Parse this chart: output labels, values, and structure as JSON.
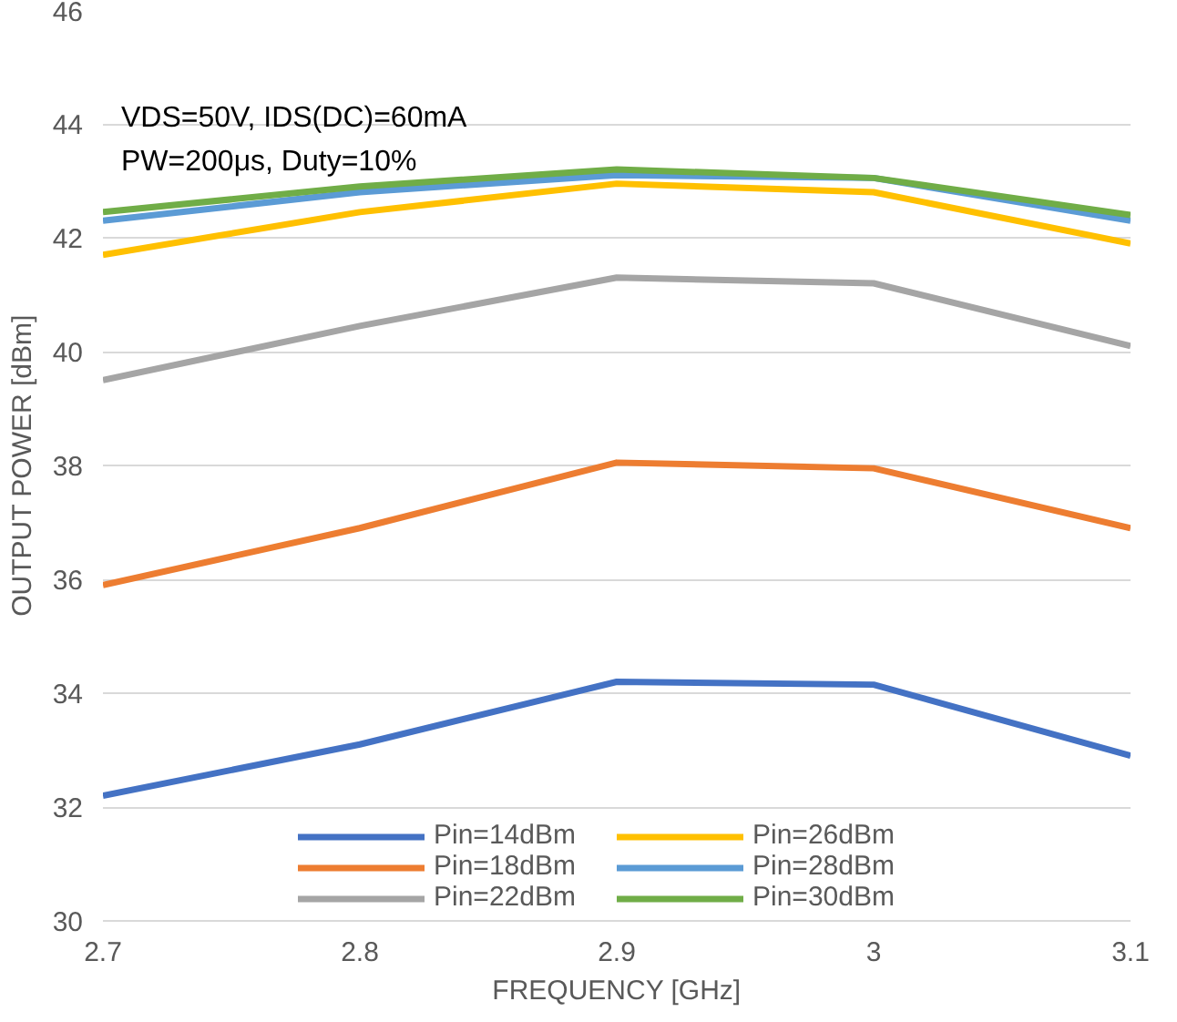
{
  "chart_data": {
    "type": "line",
    "xlabel": "FREQUENCY [GHz]",
    "ylabel": "OUTPUT POWER [dBm]",
    "x": [
      2.7,
      2.8,
      2.9,
      3.0,
      3.1
    ],
    "xlim": [
      2.7,
      3.1
    ],
    "xticks": [
      2.7,
      2.8,
      2.9,
      3,
      3.1
    ],
    "ylim": [
      30,
      46
    ],
    "yticks": [
      30,
      32,
      34,
      36,
      38,
      40,
      42,
      44,
      46
    ],
    "grid": "y",
    "legend": "bottom",
    "marker": "none",
    "line_style": "solid",
    "annotations": [
      "VDS=50V, IDS(DC)=60mA",
      "PW=200μs, Duty=10%"
    ],
    "series": [
      {
        "name": "Pin=14dBm",
        "color": "#4472c4",
        "values": [
          32.2,
          33.1,
          34.2,
          34.15,
          32.9
        ]
      },
      {
        "name": "Pin=18dBm",
        "color": "#ed7d31",
        "values": [
          35.9,
          36.9,
          38.05,
          37.95,
          36.9
        ]
      },
      {
        "name": "Pin=22dBm",
        "color": "#a5a5a5",
        "values": [
          39.5,
          40.45,
          41.3,
          41.2,
          40.1
        ]
      },
      {
        "name": "Pin=26dBm",
        "color": "#ffc000",
        "values": [
          41.7,
          42.45,
          42.95,
          42.8,
          41.9
        ]
      },
      {
        "name": "Pin=28dBm",
        "color": "#5b9bd5",
        "values": [
          42.3,
          42.8,
          43.1,
          43.05,
          42.3
        ]
      },
      {
        "name": "Pin=30dBm",
        "color": "#70ad47",
        "values": [
          42.45,
          42.9,
          43.2,
          43.05,
          42.4
        ]
      }
    ]
  }
}
